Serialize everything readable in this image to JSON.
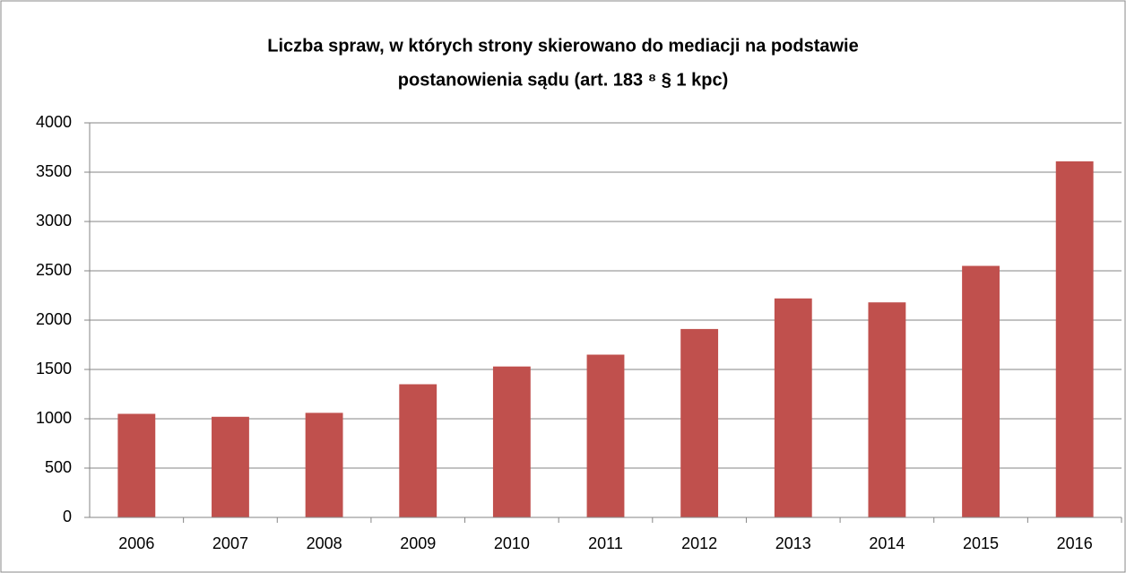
{
  "chart_data": {
    "type": "bar",
    "title": [
      "Liczba spraw, w których strony skierowano do mediacji na podstawie",
      "postanowienia sądu (art. 183 ⁸ § 1 kpc)"
    ],
    "categories": [
      "2006",
      "2007",
      "2008",
      "2009",
      "2010",
      "2011",
      "2012",
      "2013",
      "2014",
      "2015",
      "2016"
    ],
    "values": [
      1050,
      1020,
      1060,
      1350,
      1530,
      1650,
      1910,
      2220,
      2180,
      2550,
      3610
    ],
    "color": "#c0504d",
    "ylim": [
      0,
      4000
    ],
    "yticks": [
      0,
      500,
      1000,
      1500,
      2000,
      2500,
      3000,
      3500,
      4000
    ],
    "grid": true
  }
}
